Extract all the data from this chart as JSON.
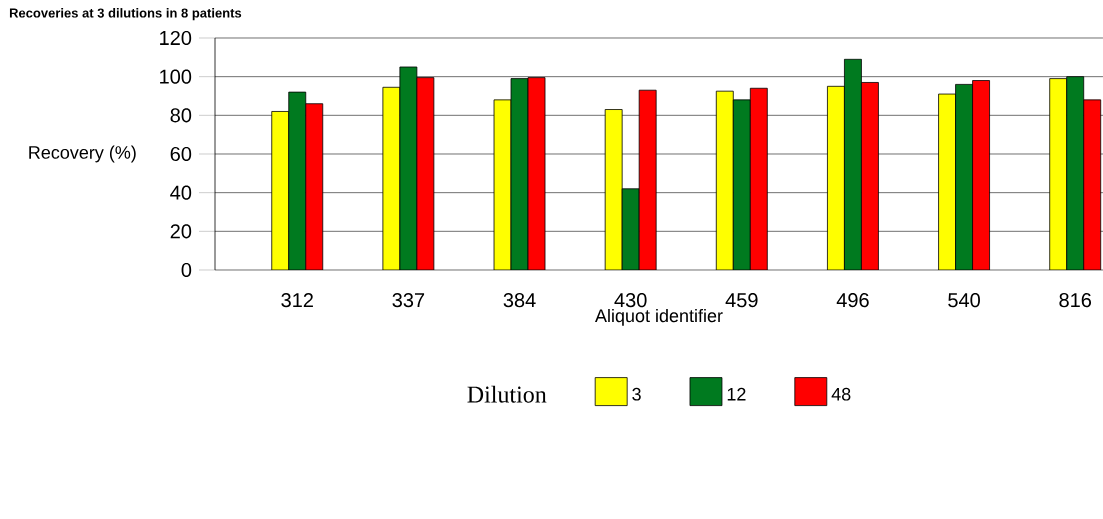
{
  "chart_data": {
    "type": "bar",
    "title": "Recoveries at 3 dilutions in 8 patients",
    "xlabel": "Aliquot identifier",
    "ylabel": "Recovery (%)",
    "legend_title": "Dilution",
    "categories": [
      "312",
      "337",
      "384",
      "430",
      "459",
      "496",
      "540",
      "816"
    ],
    "series": [
      {
        "name": "3",
        "color": "#ffff00",
        "values": [
          82,
          94.5,
          88,
          83,
          92.5,
          95,
          91,
          99
        ]
      },
      {
        "name": "12",
        "color": "#007a1f",
        "values": [
          92,
          105,
          99,
          42,
          88,
          109,
          96,
          100
        ]
      },
      {
        "name": "48",
        "color": "#ff0000",
        "values": [
          86,
          99.5,
          99.5,
          93,
          94,
          97,
          98,
          88
        ]
      }
    ],
    "ylim": [
      0,
      120
    ],
    "yticks": [
      0,
      20,
      40,
      60,
      80,
      100,
      120
    ],
    "grid": "y",
    "legend": "bottom"
  }
}
